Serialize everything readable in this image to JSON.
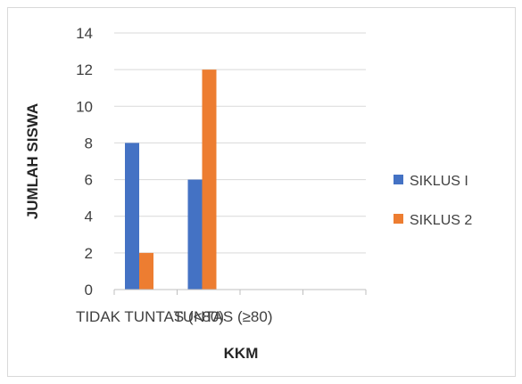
{
  "chart_data": {
    "type": "bar",
    "categories": [
      "TIDAK TUNTAS (<80)",
      "TUNTAS (≥80)"
    ],
    "series": [
      {
        "name": "SIKLUS I",
        "values": [
          8,
          6
        ],
        "color": "#4472c4"
      },
      {
        "name": "SIKLUS 2",
        "values": [
          2,
          12
        ],
        "color": "#ed7d31"
      }
    ],
    "xlabel": "KKM",
    "ylabel": "JUMLAH SISWA",
    "ylim": [
      0,
      14
    ],
    "yticks": [
      0,
      2,
      4,
      6,
      8,
      10,
      12,
      14
    ],
    "grid": true,
    "legend_position": "right"
  }
}
